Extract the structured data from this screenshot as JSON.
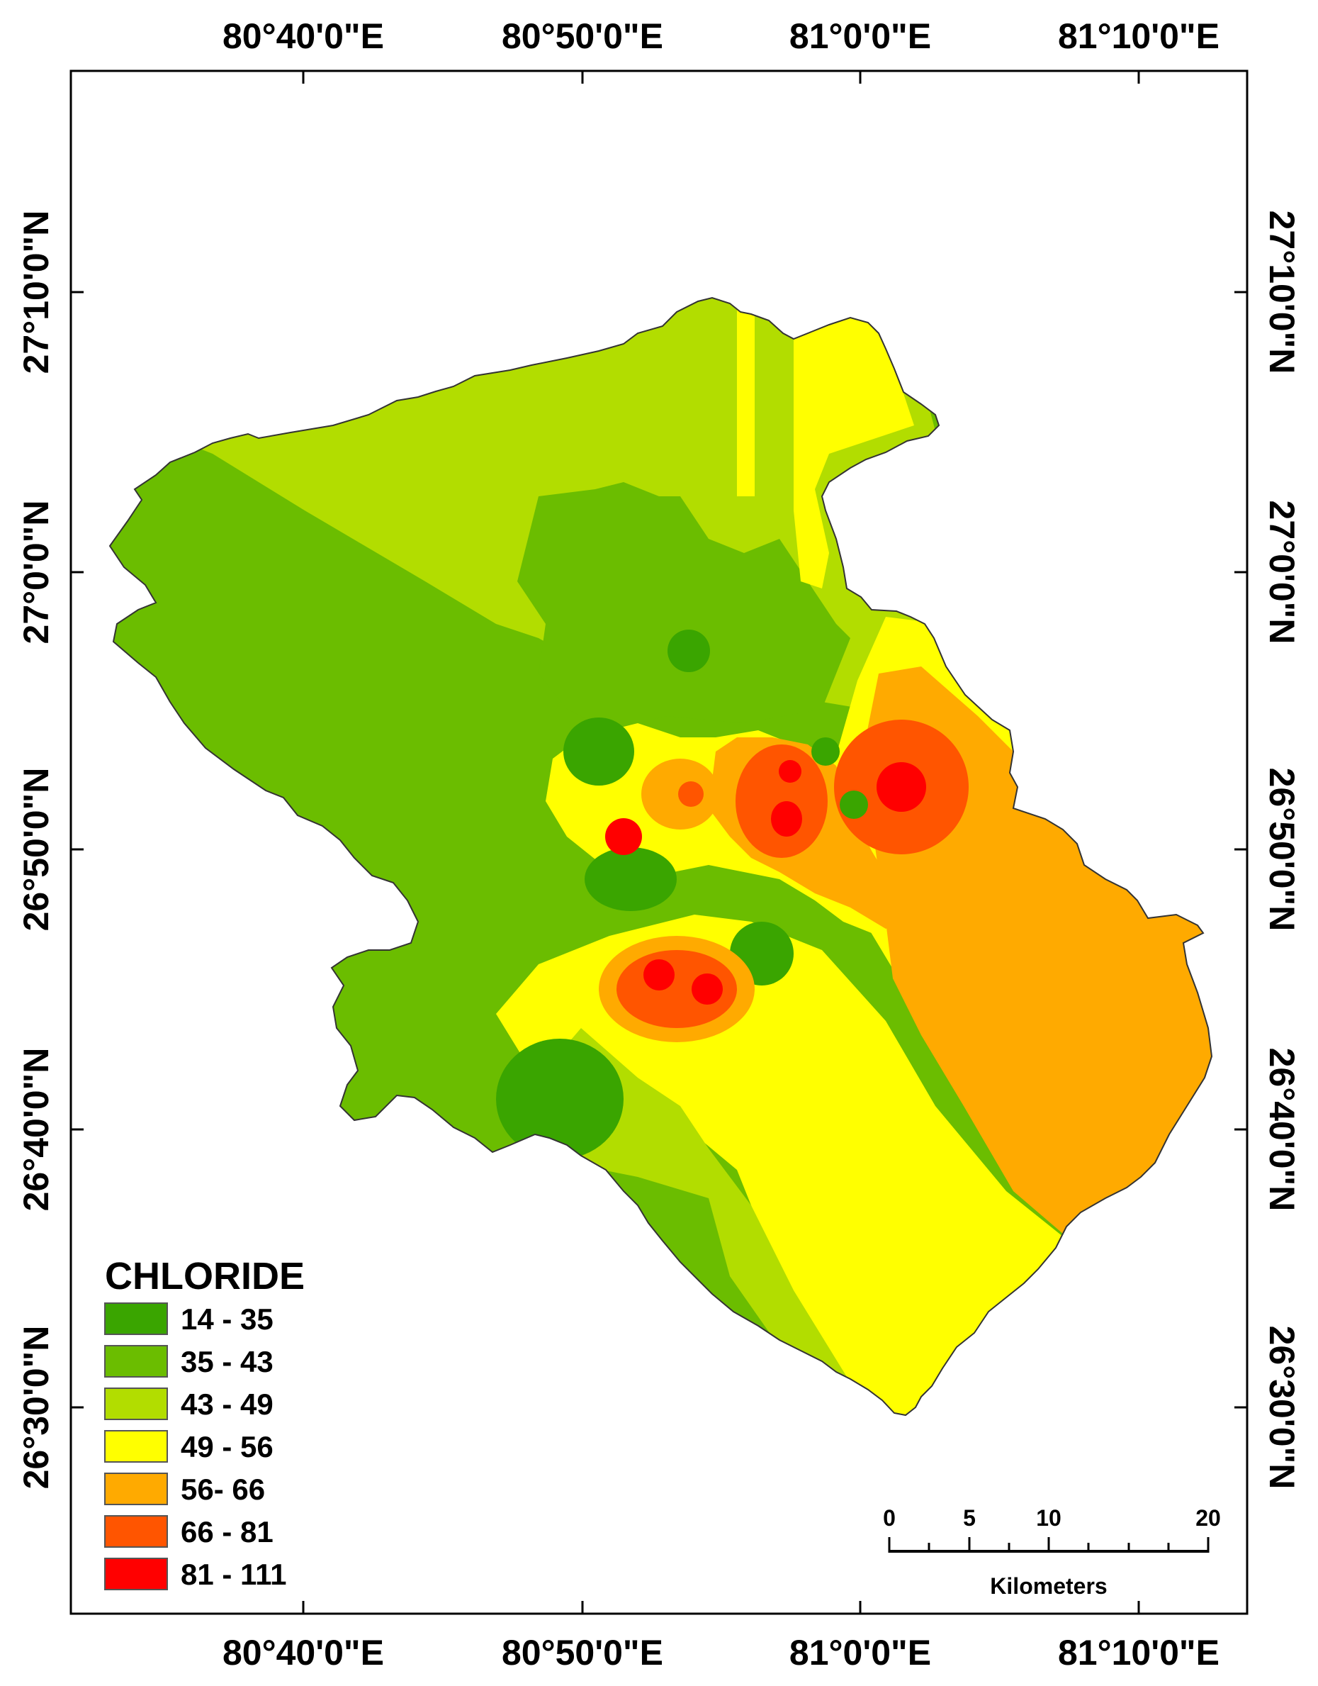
{
  "legend": {
    "title": "CHLORIDE",
    "classes": [
      {
        "label": "14 - 35",
        "color": "#3aa500"
      },
      {
        "label": "35 - 43",
        "color": "#6bbd00"
      },
      {
        "label": "43 - 49",
        "color": "#b2dd00"
      },
      {
        "label": "49 - 56",
        "color": "#ffff00"
      },
      {
        "label": "56- 66",
        "color": "#ffaa00"
      },
      {
        "label": "66 - 81",
        "color": "#ff5500"
      },
      {
        "label": "81 - 111",
        "color": "#ff0000"
      }
    ]
  },
  "graticule": {
    "longitudes": [
      "80°40'0\"E",
      "80°50'0\"E",
      "81°0'0\"E",
      "81°10'0\"E"
    ],
    "latitudes": [
      "27°10'0\"N",
      "27°0'0\"N",
      "26°50'0\"N",
      "26°40'0\"N",
      "26°30'0\"N"
    ]
  },
  "scale_bar": {
    "unit": "Kilometers",
    "ticks": [
      "0",
      "5",
      "10",
      "20"
    ]
  },
  "colors": {
    "frame": "#000000",
    "background": "#ffffff"
  }
}
